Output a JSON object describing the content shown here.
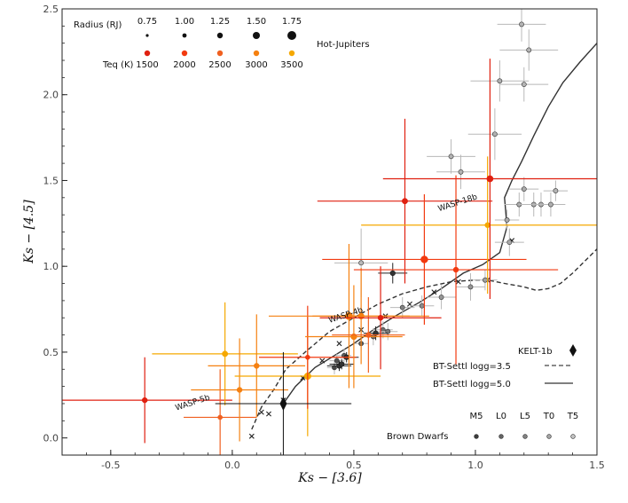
{
  "chart_data": {
    "type": "scatter",
    "xlabel": "Ks − [3.6]",
    "ylabel": "Ks − [4.5]",
    "xlim": [
      -0.7,
      1.5
    ],
    "ylim": [
      -0.1,
      2.5
    ],
    "xticks": [
      -0.5,
      0.0,
      0.5,
      1.0,
      1.5
    ],
    "xtick_labels": [
      "-0.5",
      "0.0",
      "0.5",
      "1.0",
      "1.5"
    ],
    "yticks": [
      0.0,
      0.5,
      1.0,
      1.5,
      2.0,
      2.5
    ],
    "ytick_labels": [
      "0.0",
      "0.5",
      "1.0",
      "1.5",
      "2.0",
      "2.5"
    ],
    "colors": {
      "t1500": "#e02010",
      "t2000": "#f23a10",
      "t2500": "#f06020",
      "t3000": "#f58010",
      "t3500": "#f5a800",
      "dwarf_gray": "#8a8a8a"
    },
    "legend": {
      "radius_title": "Radius (RJ)",
      "radius_values": [
        "0.75",
        "1.00",
        "1.25",
        "1.50",
        "1.75"
      ],
      "radius_sizes": [
        1.6,
        2.4,
        3.2,
        4.0,
        5.0
      ],
      "teq_title": "Teq (K)",
      "teq_values": [
        "1500",
        "2000",
        "2500",
        "3000",
        "3500"
      ],
      "hot_jupiters_label": "Hot-Jupiters",
      "kelt_label": "KELT-1b",
      "btsettl35_label": "BT-Settl logg=3.5",
      "btsettl50_label": "BT-Settl logg=5.0",
      "spt_labels": [
        "M5",
        "L0",
        "L5",
        "T0",
        "T5"
      ],
      "brown_dwarfs_label": "Brown Dwarfs"
    },
    "annotations": [
      {
        "text": "WASP-18b",
        "x": 0.85,
        "y": 1.32
      },
      {
        "text": "WASP-4b",
        "x": 0.4,
        "y": 0.67
      },
      {
        "text": "WASP-5b",
        "x": -0.23,
        "y": 0.16
      }
    ],
    "hot_jupiters": [
      {
        "x": -0.36,
        "y": 0.22,
        "xerr": 0.36,
        "yerr": 0.25,
        "temp": "t1500",
        "r": 3.0
      },
      {
        "x": -0.05,
        "y": 0.12,
        "xerr": 0.15,
        "yerr": 0.28,
        "temp": "t2500",
        "r": 2.6
      },
      {
        "x": -0.03,
        "y": 0.49,
        "xerr": 0.3,
        "yerr": 0.3,
        "temp": "t3500",
        "r": 3.2
      },
      {
        "x": 0.03,
        "y": 0.28,
        "xerr": 0.2,
        "yerr": 0.3,
        "temp": "t3000",
        "r": 3.0
      },
      {
        "x": 0.1,
        "y": 0.42,
        "xerr": 0.2,
        "yerr": 0.3,
        "temp": "t3000",
        "r": 3.0
      },
      {
        "x": 0.31,
        "y": 0.36,
        "xerr": 0.3,
        "yerr": 0.35,
        "temp": "t3500",
        "r": 3.8
      },
      {
        "x": 0.31,
        "y": 0.47,
        "xerr": 0.2,
        "yerr": 0.3,
        "temp": "t2000",
        "r": 2.6
      },
      {
        "x": 0.48,
        "y": 0.71,
        "xerr": 0.33,
        "yerr": 0.42,
        "temp": "t3000",
        "r": 4.2
      },
      {
        "x": 0.5,
        "y": 0.59,
        "xerr": 0.2,
        "yerr": 0.3,
        "temp": "t3000",
        "r": 3.4
      },
      {
        "x": 0.53,
        "y": 0.71,
        "xerr": 0.2,
        "yerr": 0.28,
        "temp": "t3000",
        "r": 3.4
      },
      {
        "x": 0.56,
        "y": 0.6,
        "xerr": 0.15,
        "yerr": 0.22,
        "temp": "t2500",
        "r": 3.0
      },
      {
        "x": 0.61,
        "y": 0.7,
        "xerr": 0.25,
        "yerr": 0.3,
        "temp": "t1500",
        "r": 3.0
      },
      {
        "x": 0.71,
        "y": 1.38,
        "xerr": 0.36,
        "yerr": 0.48,
        "temp": "t1500",
        "r": 3.2
      },
      {
        "x": 0.79,
        "y": 1.04,
        "xerr": 0.42,
        "yerr": 0.38,
        "temp": "t2000",
        "r": 4.0
      },
      {
        "x": 0.92,
        "y": 0.98,
        "xerr": 0.42,
        "yerr": 0.55,
        "temp": "t2000",
        "r": 3.0
      },
      {
        "x": 1.05,
        "y": 1.24,
        "xerr": 0.52,
        "yerr": 0.4,
        "temp": "t3500",
        "r": 3.0
      },
      {
        "x": 1.06,
        "y": 1.51,
        "xerr": 0.44,
        "yerr": 0.7,
        "temp": "t1500",
        "r": 3.6
      }
    ],
    "black_planets": [
      {
        "x": 0.44,
        "y": 0.42,
        "xerr": 0.05,
        "yerr": 0.03
      },
      {
        "x": 0.45,
        "y": 0.43,
        "xerr": 0.05,
        "yerr": 0.03
      },
      {
        "x": 0.47,
        "y": 0.47,
        "xerr": 0.05,
        "yerr": 0.03
      },
      {
        "x": 0.59,
        "y": 0.61,
        "xerr": 0.05,
        "yerr": 0.04
      },
      {
        "x": 0.66,
        "y": 0.96,
        "xerr": 0.06,
        "yerr": 0.06
      }
    ],
    "kelt1b": {
      "x": 0.21,
      "y": 0.2,
      "xerr": 0.28,
      "yerr": 0.3
    },
    "brown_dwarfs": [
      {
        "x": 0.42,
        "y": 0.41,
        "xerr": 0.03,
        "yerr": 0.04,
        "g": 70
      },
      {
        "x": 0.43,
        "y": 0.45,
        "xerr": 0.03,
        "yerr": 0.04,
        "g": 80
      },
      {
        "x": 0.46,
        "y": 0.48,
        "xerr": 0.03,
        "yerr": 0.04,
        "g": 90
      },
      {
        "x": 0.53,
        "y": 0.55,
        "xerr": 0.03,
        "yerr": 0.04,
        "g": 90
      },
      {
        "x": 0.58,
        "y": 0.59,
        "xerr": 0.04,
        "yerr": 0.05,
        "g": 110
      },
      {
        "x": 0.62,
        "y": 0.63,
        "xerr": 0.04,
        "yerr": 0.05,
        "g": 110
      },
      {
        "x": 0.64,
        "y": 0.62,
        "xerr": 0.04,
        "yerr": 0.05,
        "g": 120
      },
      {
        "x": 0.7,
        "y": 0.76,
        "xerr": 0.05,
        "yerr": 0.06,
        "g": 130
      },
      {
        "x": 0.78,
        "y": 0.77,
        "xerr": 0.05,
        "yerr": 0.06,
        "g": 140
      },
      {
        "x": 0.86,
        "y": 0.82,
        "xerr": 0.06,
        "yerr": 0.07,
        "g": 150
      },
      {
        "x": 0.98,
        "y": 0.88,
        "xerr": 0.06,
        "yerr": 0.08,
        "g": 150
      },
      {
        "x": 1.04,
        "y": 0.92,
        "xerr": 0.05,
        "yerr": 0.06,
        "g": 160
      },
      {
        "x": 0.53,
        "y": 1.02,
        "xerr": 0.11,
        "yerr": 0.2,
        "g": 185
      },
      {
        "x": 1.08,
        "y": 1.77,
        "xerr": 0.11,
        "yerr": 0.15,
        "g": 175
      },
      {
        "x": 1.1,
        "y": 2.08,
        "xerr": 0.12,
        "yerr": 0.12,
        "g": 175
      },
      {
        "x": 1.19,
        "y": 2.41,
        "xerr": 0.1,
        "yerr": 0.1,
        "g": 180
      },
      {
        "x": 1.2,
        "y": 2.06,
        "xerr": 0.1,
        "yerr": 0.1,
        "g": 180
      },
      {
        "x": 1.22,
        "y": 2.26,
        "xerr": 0.12,
        "yerr": 0.12,
        "g": 180
      },
      {
        "x": 0.9,
        "y": 1.64,
        "xerr": 0.1,
        "yerr": 0.1,
        "g": 180
      },
      {
        "x": 0.94,
        "y": 1.55,
        "xerr": 0.1,
        "yerr": 0.1,
        "g": 180
      },
      {
        "x": 1.13,
        "y": 1.27,
        "xerr": 0.05,
        "yerr": 0.06,
        "g": 170
      },
      {
        "x": 1.14,
        "y": 1.14,
        "xerr": 0.06,
        "yerr": 0.08,
        "g": 170
      },
      {
        "x": 1.18,
        "y": 1.36,
        "xerr": 0.06,
        "yerr": 0.07,
        "g": 170
      },
      {
        "x": 1.2,
        "y": 1.45,
        "xerr": 0.06,
        "yerr": 0.07,
        "g": 170
      },
      {
        "x": 1.24,
        "y": 1.36,
        "xerr": 0.06,
        "yerr": 0.07,
        "g": 175
      },
      {
        "x": 1.27,
        "y": 1.36,
        "xerr": 0.06,
        "yerr": 0.07,
        "g": 175
      },
      {
        "x": 1.31,
        "y": 1.36,
        "xerr": 0.06,
        "yerr": 0.07,
        "g": 175
      },
      {
        "x": 1.33,
        "y": 1.44,
        "xerr": 0.05,
        "yerr": 0.06,
        "g": 180
      }
    ],
    "bt_settl_35": {
      "x": [
        0.08,
        0.12,
        0.17,
        0.22,
        0.3,
        0.4,
        0.5,
        0.6,
        0.7,
        0.8,
        0.9,
        1.0,
        1.05,
        1.12,
        1.2,
        1.25,
        1.3,
        1.35,
        1.4,
        1.45,
        1.5
      ],
      "y": [
        0.05,
        0.18,
        0.28,
        0.4,
        0.5,
        0.62,
        0.7,
        0.78,
        0.84,
        0.88,
        0.91,
        0.92,
        0.92,
        0.9,
        0.88,
        0.86,
        0.87,
        0.9,
        0.96,
        1.03,
        1.1
      ]
    },
    "bt_settl_50": {
      "x": [
        0.21,
        0.26,
        0.34,
        0.42,
        0.5,
        0.58,
        0.67,
        0.77,
        0.86,
        0.95,
        1.03,
        1.1,
        1.13,
        1.12,
        1.15,
        1.19,
        1.24,
        1.3,
        1.36,
        1.43,
        1.5
      ],
      "y": [
        0.2,
        0.3,
        0.41,
        0.48,
        0.55,
        0.63,
        0.71,
        0.79,
        0.87,
        0.96,
        1.01,
        1.08,
        1.23,
        1.4,
        1.5,
        1.61,
        1.76,
        1.93,
        2.07,
        2.19,
        2.3
      ]
    },
    "model_markers": {
      "x": [
        0.08,
        0.12,
        0.15,
        0.21,
        0.29,
        0.37,
        0.44,
        0.53,
        0.63,
        0.73,
        0.83,
        0.93,
        1.05,
        1.15
      ],
      "y": [
        0.01,
        0.15,
        0.14,
        0.22,
        0.35,
        0.45,
        0.55,
        0.63,
        0.71,
        0.78,
        0.85,
        0.91,
        0.92,
        1.15
      ]
    }
  }
}
